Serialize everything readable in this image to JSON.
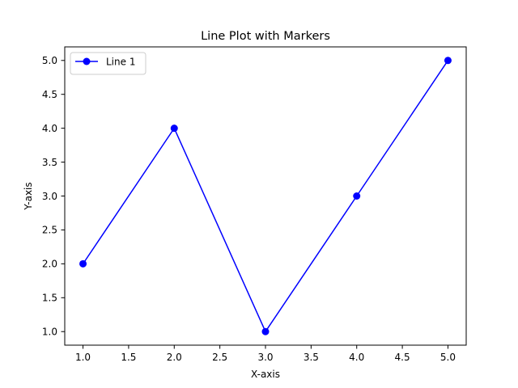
{
  "chart_data": {
    "type": "line",
    "title": "Line Plot with Markers",
    "xlabel": "X-axis",
    "ylabel": "Y-axis",
    "xlim": [
      0.8,
      5.2
    ],
    "ylim": [
      0.8,
      5.2
    ],
    "x_ticks": [
      1.0,
      1.5,
      2.0,
      2.5,
      3.0,
      3.5,
      4.0,
      4.5,
      5.0
    ],
    "y_ticks": [
      1.0,
      1.5,
      2.0,
      2.5,
      3.0,
      3.5,
      4.0,
      4.5,
      5.0
    ],
    "x_tick_labels": [
      "1.0",
      "1.5",
      "2.0",
      "2.5",
      "3.0",
      "3.5",
      "4.0",
      "4.5",
      "5.0"
    ],
    "y_tick_labels": [
      "1.0",
      "1.5",
      "2.0",
      "2.5",
      "3.0",
      "3.5",
      "4.0",
      "4.5",
      "5.0"
    ],
    "grid": false,
    "legend_position": "upper-left",
    "series": [
      {
        "name": "Line 1",
        "color": "#0000ff",
        "marker": "circle",
        "x": [
          1,
          2,
          3,
          4,
          5
        ],
        "y": [
          2,
          4,
          1,
          3,
          5
        ]
      }
    ]
  }
}
